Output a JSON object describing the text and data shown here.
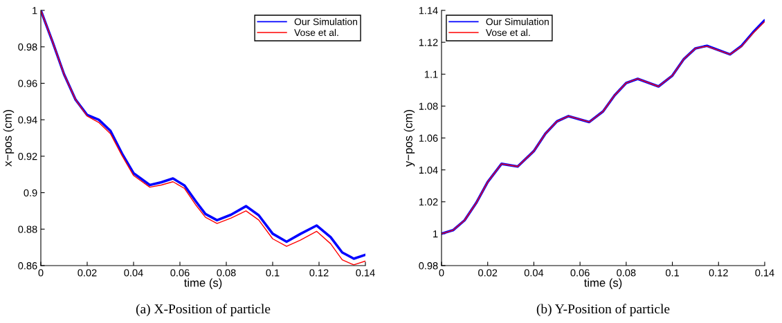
{
  "chart_data": [
    {
      "type": "line",
      "xlabel": "time (s)",
      "ylabel": "x−pos (cm)",
      "annotations": [
        "(a) X-Position of particle"
      ],
      "xlim": [
        0,
        0.14
      ],
      "xticks": [
        0,
        0.02,
        0.04,
        0.06,
        0.08,
        {
          "value": 0.1,
          "label": "0.1"
        },
        0.12,
        0.14
      ],
      "ylim": [
        0.86,
        1
      ],
      "yticks": [
        0.86,
        0.88,
        {
          "value": 0.9,
          "label": "0.9"
        },
        0.92,
        0.94,
        0.96,
        0.98,
        {
          "value": 1,
          "label": "1"
        }
      ],
      "legend": "top right",
      "grid": false,
      "x": [
        0,
        0.005,
        0.01,
        0.015,
        0.02,
        0.025,
        0.03,
        0.035,
        0.04,
        0.047,
        0.052,
        0.057,
        0.062,
        0.067,
        0.071,
        0.076,
        0.082,
        0.0885,
        0.094,
        0.1,
        0.106,
        0.112,
        0.119,
        0.125,
        0.13,
        0.135,
        0.14
      ],
      "series": [
        {
          "name": "Our Simulation",
          "color": "#0000ff",
          "values": [
            1.0,
            0.983,
            0.965,
            0.951,
            0.9426,
            0.94,
            0.934,
            0.9215,
            0.9107,
            0.9042,
            0.9057,
            0.9078,
            0.9039,
            0.895,
            0.8883,
            0.8849,
            0.8879,
            0.8926,
            0.8876,
            0.8775,
            0.8731,
            0.8774,
            0.882,
            0.8756,
            0.8672,
            0.8638,
            0.8659
          ]
        },
        {
          "name": "Vose et al.",
          "color": "#ff0000",
          "values": [
            1.0,
            0.983,
            0.965,
            0.951,
            0.942,
            0.9385,
            0.9324,
            0.9204,
            0.9094,
            0.903,
            0.9042,
            0.906,
            0.9023,
            0.893,
            0.8865,
            0.8831,
            0.886,
            0.89,
            0.885,
            0.8747,
            0.8706,
            0.874,
            0.8788,
            0.872,
            0.8632,
            0.8604,
            0.8625
          ]
        }
      ]
    },
    {
      "type": "line",
      "xlabel": "time (s)",
      "ylabel": "y−pos (cm)",
      "annotations": [
        "(b) Y-Position of particle"
      ],
      "xlim": [
        0,
        0.14
      ],
      "xticks": [
        0,
        0.02,
        0.04,
        0.06,
        0.08,
        {
          "value": 0.1,
          "label": "0.1"
        },
        0.12,
        0.14
      ],
      "ylim": [
        0.98,
        1.14
      ],
      "yticks": [
        0.98,
        {
          "value": 1,
          "label": "1"
        },
        1.02,
        1.04,
        1.06,
        1.08,
        {
          "value": 1.1,
          "label": "1.1"
        },
        1.12,
        1.14
      ],
      "legend": "top left",
      "grid": false,
      "x": [
        0,
        0.005,
        0.01,
        0.015,
        0.02,
        0.026,
        0.033,
        0.04,
        0.045,
        0.05,
        0.055,
        0.064,
        0.07,
        0.075,
        0.08,
        0.085,
        0.094,
        0.1,
        0.105,
        0.11,
        0.115,
        0.125,
        0.13,
        0.135,
        0.14
      ],
      "series": [
        {
          "name": "Our Simulation",
          "color": "#0000ff",
          "values": [
            1.0,
            1.0022,
            1.0084,
            1.0192,
            1.0324,
            1.0438,
            1.0421,
            1.0518,
            1.0627,
            1.0704,
            1.0737,
            1.07,
            1.0767,
            1.0868,
            1.0945,
            1.0971,
            1.0923,
            1.0991,
            1.1095,
            1.1162,
            1.1178,
            1.1124,
            1.1178,
            1.1263,
            1.1338
          ]
        },
        {
          "name": "Vose et al.",
          "color": "#ff0000",
          "values": [
            1.0,
            1.0022,
            1.0084,
            1.0192,
            1.0324,
            1.0438,
            1.0421,
            1.0518,
            1.0627,
            1.0704,
            1.0737,
            1.07,
            1.0767,
            1.0868,
            1.0945,
            1.0971,
            1.0923,
            1.0991,
            1.1095,
            1.1162,
            1.1175,
            1.1124,
            1.1175,
            1.1258,
            1.133
          ]
        }
      ]
    }
  ]
}
